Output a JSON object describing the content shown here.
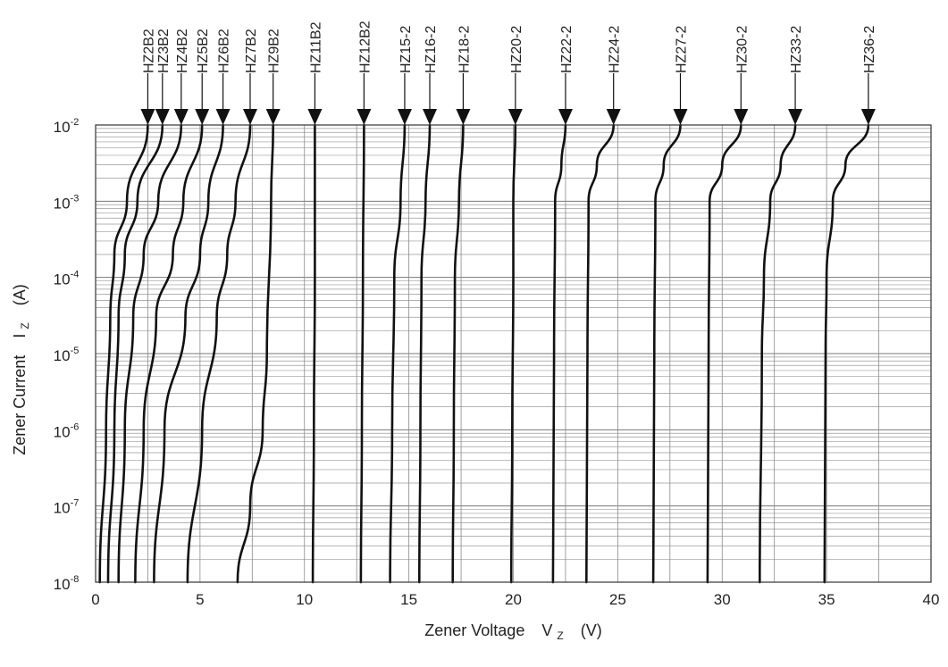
{
  "chart_data": {
    "type": "line",
    "xlabel": {
      "name": "Zener Voltage",
      "symbol": "V",
      "subscript": "Z",
      "unit": "(V)"
    },
    "ylabel": {
      "name": "Zener Current",
      "symbol": "I",
      "subscript": "Z",
      "unit": "(A)"
    },
    "xlim": [
      0,
      40
    ],
    "ylim": [
      1e-08,
      0.01
    ],
    "yscale": "log",
    "grid": true,
    "x_ticks": [
      {
        "value": 0,
        "label": "0"
      },
      {
        "value": 5,
        "label": "5"
      },
      {
        "value": 10,
        "label": "10"
      },
      {
        "value": 15,
        "label": "15"
      },
      {
        "value": 20,
        "label": "20"
      },
      {
        "value": 25,
        "label": "25"
      },
      {
        "value": 30,
        "label": "30"
      },
      {
        "value": 35,
        "label": "35"
      },
      {
        "value": 40,
        "label": "40"
      }
    ],
    "y_ticks": [
      {
        "value": 1e-08,
        "base": "10",
        "exp": "-8"
      },
      {
        "value": 1e-07,
        "base": "10",
        "exp": "-7"
      },
      {
        "value": 1e-06,
        "base": "10",
        "exp": "-6"
      },
      {
        "value": 1e-05,
        "base": "10",
        "exp": "-5"
      },
      {
        "value": 0.0001,
        "base": "10",
        "exp": "-4"
      },
      {
        "value": 0.001,
        "base": "10",
        "exp": "-3"
      },
      {
        "value": 0.01,
        "base": "10",
        "exp": "-2"
      }
    ],
    "series": [
      {
        "name": "HZ2B2",
        "points": [
          [
            0.2,
            1e-08
          ],
          [
            0.5,
            1e-06
          ],
          [
            0.7,
            3e-05
          ],
          [
            0.9,
            0.0002
          ],
          [
            1.5,
            0.001
          ],
          [
            2.5,
            0.01
          ]
        ]
      },
      {
        "name": "HZ3B2",
        "points": [
          [
            0.6,
            1e-08
          ],
          [
            0.9,
            1e-06
          ],
          [
            1.1,
            3e-05
          ],
          [
            1.4,
            0.0002
          ],
          [
            2.0,
            0.001
          ],
          [
            3.2,
            0.01
          ]
        ]
      },
      {
        "name": "HZ4B2",
        "points": [
          [
            1.1,
            1e-08
          ],
          [
            1.4,
            1e-06
          ],
          [
            1.8,
            3e-05
          ],
          [
            2.3,
            0.0002
          ],
          [
            3.0,
            0.001
          ],
          [
            4.1,
            0.01
          ]
        ]
      },
      {
        "name": "HZ5B2",
        "points": [
          [
            1.9,
            1e-08
          ],
          [
            2.3,
            1e-06
          ],
          [
            2.9,
            3e-05
          ],
          [
            3.7,
            0.0002
          ],
          [
            4.2,
            0.001
          ],
          [
            5.1,
            0.01
          ]
        ]
      },
      {
        "name": "HZ6B2",
        "points": [
          [
            2.8,
            1e-08
          ],
          [
            3.3,
            1e-06
          ],
          [
            4.3,
            3e-05
          ],
          [
            5.0,
            0.0002
          ],
          [
            5.4,
            0.001
          ],
          [
            6.1,
            0.01
          ]
        ]
      },
      {
        "name": "HZ7B2",
        "points": [
          [
            4.4,
            1e-08
          ],
          [
            5.1,
            1e-06
          ],
          [
            5.8,
            3e-05
          ],
          [
            6.3,
            0.0002
          ],
          [
            6.7,
            0.001
          ],
          [
            7.4,
            0.01
          ]
        ]
      },
      {
        "name": "HZ9B2",
        "points": [
          [
            6.8,
            1e-08
          ],
          [
            7.4,
            1e-07
          ],
          [
            8.0,
            1e-06
          ],
          [
            8.2,
            1e-05
          ],
          [
            8.4,
            0.001
          ],
          [
            8.5,
            0.01
          ]
        ]
      },
      {
        "name": "HZ11B2",
        "points": [
          [
            10.4,
            1e-08
          ],
          [
            10.45,
            1e-06
          ],
          [
            10.5,
            0.0001
          ],
          [
            10.5,
            0.01
          ]
        ]
      },
      {
        "name": "HZ12B2",
        "points": [
          [
            12.7,
            1e-08
          ],
          [
            12.75,
            1e-06
          ],
          [
            12.8,
            0.0001
          ],
          [
            12.85,
            0.01
          ]
        ]
      },
      {
        "name": "HZ15-2",
        "points": [
          [
            14.1,
            1e-08
          ],
          [
            14.2,
            1e-06
          ],
          [
            14.3,
            0.0001
          ],
          [
            14.6,
            0.001
          ],
          [
            14.8,
            0.01
          ]
        ]
      },
      {
        "name": "HZ16-2",
        "points": [
          [
            15.5,
            1e-08
          ],
          [
            15.55,
            1e-06
          ],
          [
            15.6,
            0.0001
          ],
          [
            15.8,
            0.001
          ],
          [
            16.0,
            0.01
          ]
        ]
      },
      {
        "name": "HZ18-2",
        "points": [
          [
            17.1,
            1e-08
          ],
          [
            17.15,
            1e-06
          ],
          [
            17.2,
            0.0001
          ],
          [
            17.4,
            0.001
          ],
          [
            17.6,
            0.01
          ]
        ]
      },
      {
        "name": "HZ20-2",
        "points": [
          [
            19.9,
            1e-08
          ],
          [
            19.95,
            1e-06
          ],
          [
            20.0,
            0.0001
          ],
          [
            20.0,
            0.001
          ],
          [
            20.1,
            0.01
          ]
        ]
      },
      {
        "name": "HZ22-2",
        "points": [
          [
            21.9,
            1e-08
          ],
          [
            21.95,
            1e-05
          ],
          [
            22.0,
            0.001
          ],
          [
            22.3,
            0.003
          ],
          [
            22.5,
            0.01
          ]
        ]
      },
      {
        "name": "HZ24-2",
        "points": [
          [
            23.5,
            1e-08
          ],
          [
            23.55,
            1e-05
          ],
          [
            23.6,
            0.001
          ],
          [
            24.0,
            0.003
          ],
          [
            24.8,
            0.01
          ]
        ]
      },
      {
        "name": "HZ27-2",
        "points": [
          [
            26.7,
            1e-08
          ],
          [
            26.75,
            1e-05
          ],
          [
            26.8,
            0.001
          ],
          [
            27.2,
            0.003
          ],
          [
            28.0,
            0.01
          ]
        ]
      },
      {
        "name": "HZ30-2",
        "points": [
          [
            29.3,
            1e-08
          ],
          [
            29.35,
            1e-05
          ],
          [
            29.4,
            0.001
          ],
          [
            30.0,
            0.003
          ],
          [
            30.9,
            0.01
          ]
        ]
      },
      {
        "name": "HZ33-2",
        "points": [
          [
            31.8,
            1e-08
          ],
          [
            31.9,
            1e-05
          ],
          [
            32.0,
            0.0001
          ],
          [
            32.3,
            0.001
          ],
          [
            32.8,
            0.003
          ],
          [
            33.5,
            0.01
          ]
        ]
      },
      {
        "name": "HZ36-2",
        "points": [
          [
            34.9,
            1e-08
          ],
          [
            34.95,
            1e-05
          ],
          [
            35.0,
            0.0001
          ],
          [
            35.3,
            0.001
          ],
          [
            35.9,
            0.003
          ],
          [
            37.0,
            0.01
          ]
        ]
      }
    ]
  }
}
